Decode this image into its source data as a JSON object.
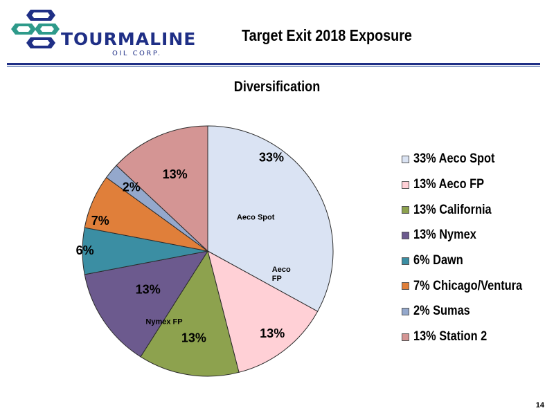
{
  "logo": {
    "name": "TOURMALINE",
    "subtitle": "OIL CORP."
  },
  "slide": {
    "title": "Target Exit 2018 Exposure",
    "page_number": "14"
  },
  "chart_data": {
    "type": "pie",
    "title": "Diversification",
    "start": "12 o'clock",
    "direction": "clockwise",
    "legend_position": "right",
    "slices": [
      {
        "label": "Aeco Spot",
        "percent_label": "33%",
        "value": 33,
        "color": "#dae3f3",
        "legend": "33% Aeco Spot",
        "inner_label": "Aeco Spot"
      },
      {
        "label": "Aeco FP",
        "percent_label": "13%",
        "value": 13,
        "color": "#ffd0d6",
        "legend": "13% Aeco FP",
        "inner_label": "Aeco\nFP"
      },
      {
        "label": "California",
        "percent_label": "13%",
        "value": 13,
        "color": "#8da24e",
        "legend": "13% California",
        "inner_label": ""
      },
      {
        "label": "Nymex",
        "percent_label": "13%",
        "value": 13,
        "color": "#6c5a8e",
        "legend": "13% Nymex",
        "inner_label": "Nymex FP"
      },
      {
        "label": "Dawn",
        "percent_label": "6%",
        "value": 6,
        "color": "#3b8ea3",
        "legend": "6% Dawn",
        "inner_label": ""
      },
      {
        "label": "Chicago/Ventura",
        "percent_label": "7%",
        "value": 7,
        "color": "#e07f3a",
        "legend": "7% Chicago/Ventura",
        "inner_label": ""
      },
      {
        "label": "Sumas",
        "percent_label": "2%",
        "value": 2,
        "color": "#94a8cc",
        "legend": "2% Sumas",
        "inner_label": ""
      },
      {
        "label": "Station 2",
        "percent_label": "13%",
        "value": 13,
        "color": "#d49594",
        "legend": "13% Station 2",
        "inner_label": ""
      }
    ]
  }
}
